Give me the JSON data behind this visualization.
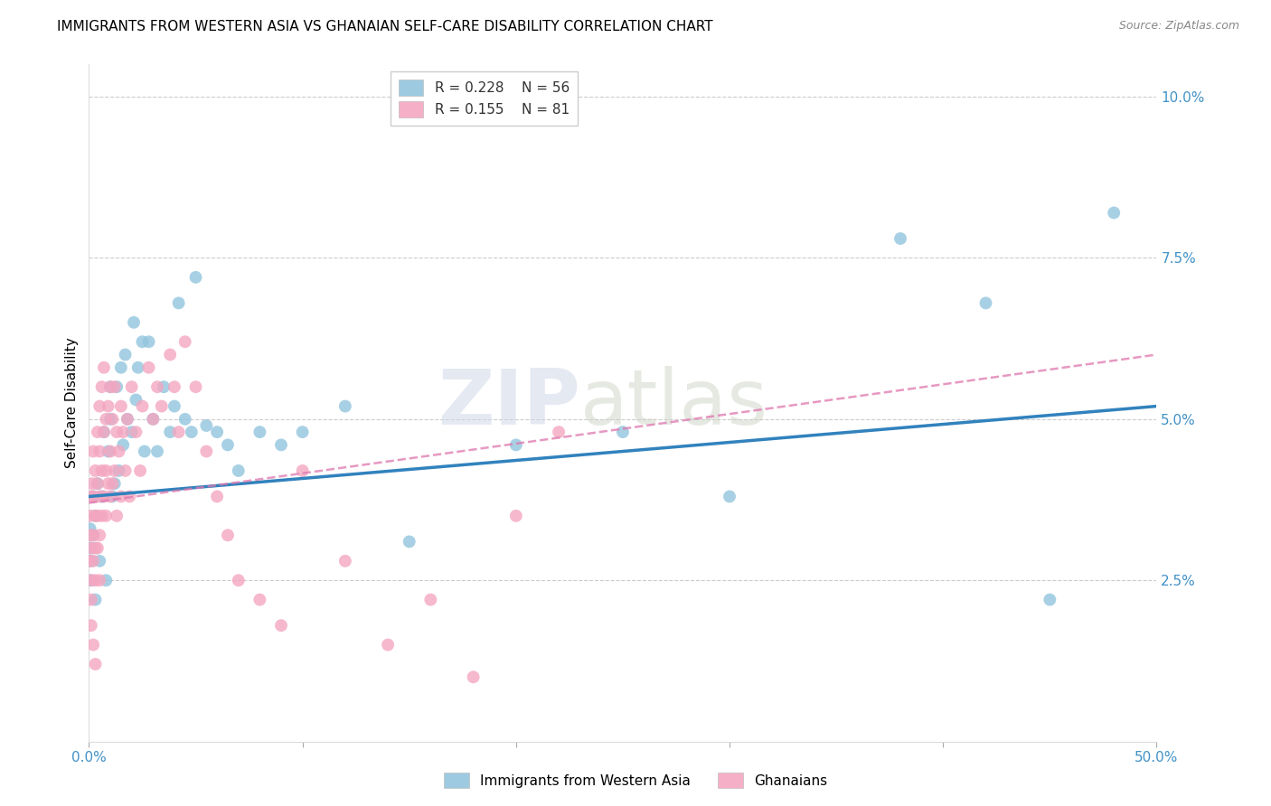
{
  "title": "IMMIGRANTS FROM WESTERN ASIA VS GHANAIAN SELF-CARE DISABILITY CORRELATION CHART",
  "source": "Source: ZipAtlas.com",
  "ylabel": "Self-Care Disability",
  "ytick_labels": [
    "2.5%",
    "5.0%",
    "7.5%",
    "10.0%"
  ],
  "ytick_values": [
    0.025,
    0.05,
    0.075,
    0.1
  ],
  "xlim": [
    0.0,
    0.5
  ],
  "ylim": [
    0.0,
    0.105
  ],
  "legend_label_blue": "Immigrants from Western Asia",
  "legend_label_pink": "Ghanaians",
  "color_blue": "#92c5de",
  "color_pink": "#f4a6c0",
  "color_blue_line": "#3182bd",
  "color_pink_line": "#de77ae",
  "color_axis_labels": "#4292c6",
  "watermark_zip": "ZIP",
  "watermark_atlas": "atlas",
  "grid_color": "#cccccc",
  "background_color": "#ffffff",
  "title_fontsize": 11,
  "axis_label_fontsize": 11,
  "tick_fontsize": 11,
  "blue_scatter_x": [
    0.0005,
    0.001,
    0.001,
    0.001,
    0.002,
    0.002,
    0.003,
    0.003,
    0.004,
    0.005,
    0.006,
    0.007,
    0.008,
    0.009,
    0.01,
    0.01,
    0.011,
    0.012,
    0.013,
    0.014,
    0.015,
    0.016,
    0.017,
    0.018,
    0.02,
    0.021,
    0.022,
    0.023,
    0.025,
    0.026,
    0.028,
    0.03,
    0.032,
    0.035,
    0.038,
    0.04,
    0.042,
    0.045,
    0.048,
    0.05,
    0.055,
    0.06,
    0.065,
    0.07,
    0.08,
    0.09,
    0.1,
    0.12,
    0.15,
    0.2,
    0.25,
    0.3,
    0.38,
    0.42,
    0.45,
    0.48
  ],
  "blue_scatter_y": [
    0.033,
    0.03,
    0.025,
    0.028,
    0.032,
    0.038,
    0.035,
    0.022,
    0.04,
    0.028,
    0.038,
    0.048,
    0.025,
    0.045,
    0.05,
    0.055,
    0.038,
    0.04,
    0.055,
    0.042,
    0.058,
    0.046,
    0.06,
    0.05,
    0.048,
    0.065,
    0.053,
    0.058,
    0.062,
    0.045,
    0.062,
    0.05,
    0.045,
    0.055,
    0.048,
    0.052,
    0.068,
    0.05,
    0.048,
    0.072,
    0.049,
    0.048,
    0.046,
    0.042,
    0.048,
    0.046,
    0.048,
    0.052,
    0.031,
    0.046,
    0.048,
    0.038,
    0.078,
    0.068,
    0.022,
    0.082
  ],
  "pink_scatter_x": [
    0.0002,
    0.0005,
    0.0005,
    0.001,
    0.001,
    0.001,
    0.001,
    0.001,
    0.0015,
    0.002,
    0.002,
    0.002,
    0.002,
    0.002,
    0.003,
    0.003,
    0.003,
    0.003,
    0.003,
    0.004,
    0.004,
    0.004,
    0.004,
    0.005,
    0.005,
    0.005,
    0.005,
    0.005,
    0.006,
    0.006,
    0.006,
    0.007,
    0.007,
    0.007,
    0.008,
    0.008,
    0.008,
    0.009,
    0.009,
    0.01,
    0.01,
    0.01,
    0.011,
    0.011,
    0.012,
    0.012,
    0.013,
    0.013,
    0.014,
    0.015,
    0.015,
    0.016,
    0.017,
    0.018,
    0.019,
    0.02,
    0.022,
    0.024,
    0.025,
    0.028,
    0.03,
    0.032,
    0.034,
    0.038,
    0.04,
    0.042,
    0.045,
    0.05,
    0.055,
    0.06,
    0.065,
    0.07,
    0.08,
    0.09,
    0.1,
    0.12,
    0.14,
    0.16,
    0.18,
    0.2,
    0.22
  ],
  "pink_scatter_y": [
    0.028,
    0.032,
    0.035,
    0.025,
    0.03,
    0.038,
    0.022,
    0.018,
    0.04,
    0.045,
    0.038,
    0.032,
    0.028,
    0.015,
    0.042,
    0.035,
    0.03,
    0.025,
    0.012,
    0.048,
    0.04,
    0.035,
    0.03,
    0.052,
    0.045,
    0.038,
    0.032,
    0.025,
    0.055,
    0.042,
    0.035,
    0.058,
    0.048,
    0.038,
    0.05,
    0.042,
    0.035,
    0.052,
    0.04,
    0.055,
    0.045,
    0.038,
    0.05,
    0.04,
    0.055,
    0.042,
    0.048,
    0.035,
    0.045,
    0.052,
    0.038,
    0.048,
    0.042,
    0.05,
    0.038,
    0.055,
    0.048,
    0.042,
    0.052,
    0.058,
    0.05,
    0.055,
    0.052,
    0.06,
    0.055,
    0.048,
    0.062,
    0.055,
    0.045,
    0.038,
    0.032,
    0.025,
    0.022,
    0.018,
    0.042,
    0.028,
    0.015,
    0.022,
    0.01,
    0.035,
    0.048
  ],
  "blue_line_y_start": 0.038,
  "blue_line_y_end": 0.052,
  "pink_line_y_start": 0.037,
  "pink_line_y_end": 0.06
}
